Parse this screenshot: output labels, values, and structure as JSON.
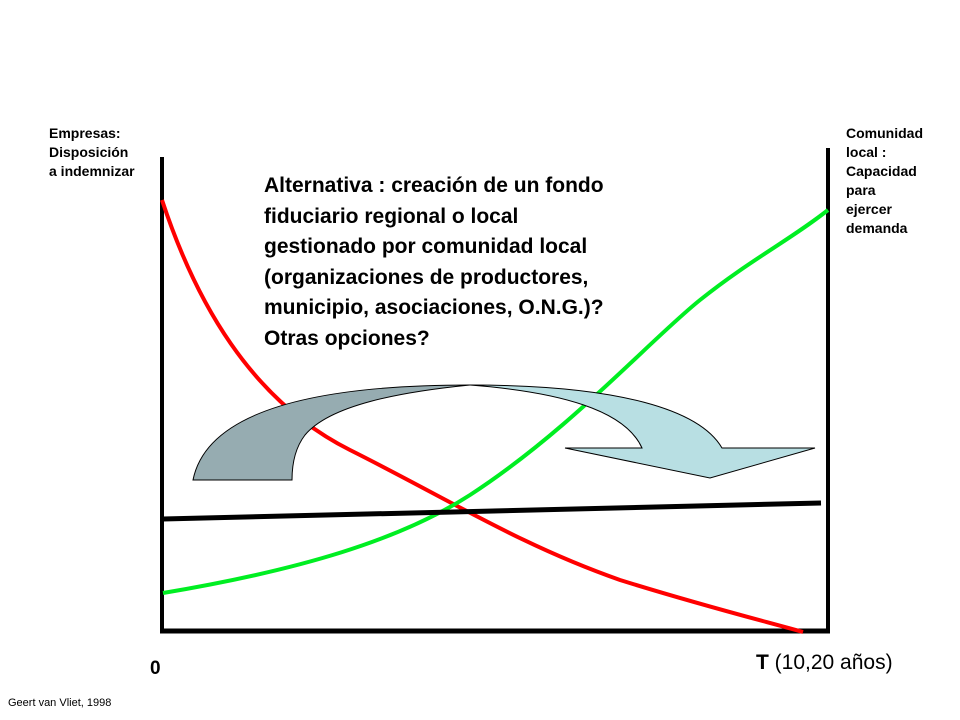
{
  "left_axis_label": "Empresas:\nDisposición\na indemnizar",
  "right_axis_label": "Comunidad\nlocal :\nCapacidad\npara\nejercer\ndemanda",
  "main_text": {
    "lines": [
      "Alternativa : creación de un fondo",
      "fiduciario regional o local",
      "gestionado por comunidad local",
      "(organizaciones de productores,",
      "municipio, asociaciones, O.N.G.)?",
      "Otras opciones?"
    ]
  },
  "origin_label": "0",
  "x_axis_label": {
    "symbol": "T",
    "range": "(10,20 años)"
  },
  "credit": "Geert van Vliet, 1998",
  "colors": {
    "decreasing_curve": "#ff0000",
    "increasing_curve": "#00ee22",
    "baseline": "#000000",
    "arrow_dark": "#96acb1",
    "arrow_light": "#b8dfe3"
  }
}
